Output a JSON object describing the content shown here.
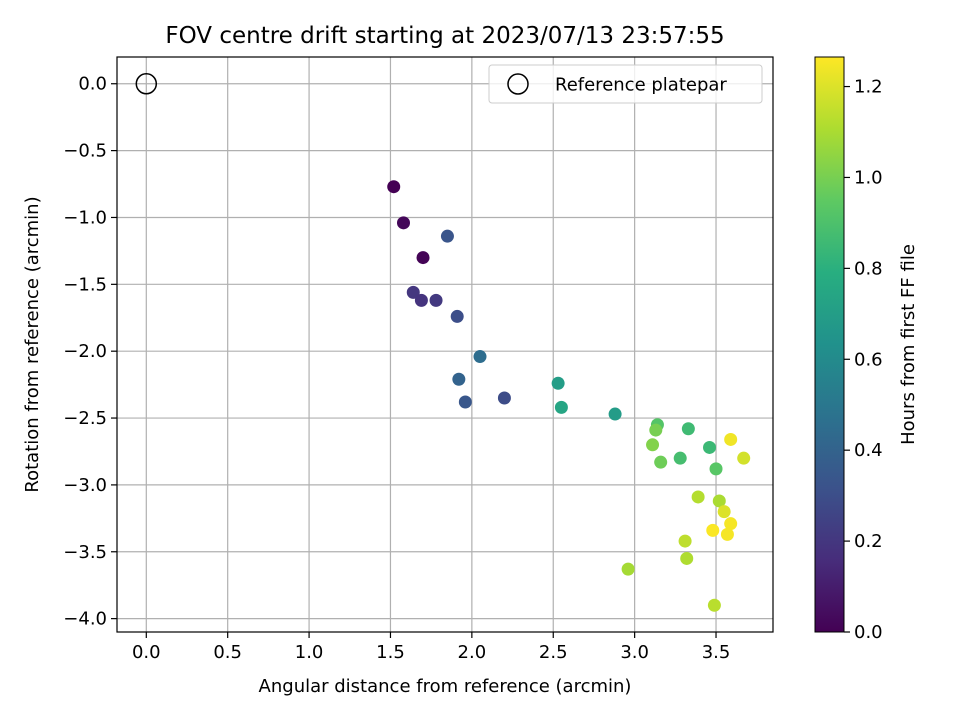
{
  "chart_data": {
    "type": "scatter",
    "title": "FOV centre drift starting at 2023/07/13 23:57:55",
    "xlabel": "Angular distance from reference (arcmin)",
    "ylabel": "Rotation from reference (arcmin)",
    "xlim": [
      -0.18,
      3.85
    ],
    "ylim": [
      -4.1,
      0.2
    ],
    "xticks": [
      0.0,
      0.5,
      1.0,
      1.5,
      2.0,
      2.5,
      3.0,
      3.5
    ],
    "xtick_labels": [
      "0.0",
      "0.5",
      "1.0",
      "1.5",
      "2.0",
      "2.5",
      "3.0",
      "3.5"
    ],
    "yticks": [
      0.0,
      -0.5,
      -1.0,
      -1.5,
      -2.0,
      -2.5,
      -3.0,
      -3.5,
      -4.0
    ],
    "ytick_labels": [
      "0.0",
      "−0.5",
      "−1.0",
      "−1.5",
      "−2.0",
      "−2.5",
      "−3.0",
      "−3.5",
      "−4.0"
    ],
    "grid": true,
    "legend": {
      "position": "top-right",
      "entries": [
        "Reference platepar"
      ]
    },
    "reference_point": {
      "x": 0.0,
      "y": 0.0,
      "marker": "open-circle"
    },
    "colorbar": {
      "label": "Hours from first FF file",
      "colormap": "viridis",
      "range": [
        0.0,
        1.265
      ],
      "ticks": [
        0.0,
        0.2,
        0.4,
        0.6,
        0.8,
        1.0,
        1.2
      ],
      "tick_labels": [
        "0.0",
        "0.2",
        "0.4",
        "0.6",
        "0.8",
        "1.0",
        "1.2"
      ]
    },
    "points": [
      {
        "x": 1.52,
        "y": -0.77,
        "c": 0.0
      },
      {
        "x": 1.58,
        "y": -1.04,
        "c": 0.02
      },
      {
        "x": 1.7,
        "y": -1.3,
        "c": 0.01
      },
      {
        "x": 1.64,
        "y": -1.56,
        "c": 0.2
      },
      {
        "x": 1.69,
        "y": -1.62,
        "c": 0.19
      },
      {
        "x": 1.78,
        "y": -1.62,
        "c": 0.21
      },
      {
        "x": 1.85,
        "y": -1.14,
        "c": 0.33
      },
      {
        "x": 1.91,
        "y": -1.74,
        "c": 0.3
      },
      {
        "x": 1.92,
        "y": -2.21,
        "c": 0.4
      },
      {
        "x": 1.96,
        "y": -2.38,
        "c": 0.34
      },
      {
        "x": 2.05,
        "y": -2.04,
        "c": 0.45
      },
      {
        "x": 2.2,
        "y": -2.35,
        "c": 0.29
      },
      {
        "x": 2.53,
        "y": -2.24,
        "c": 0.7
      },
      {
        "x": 2.55,
        "y": -2.42,
        "c": 0.74
      },
      {
        "x": 2.88,
        "y": -2.47,
        "c": 0.69
      },
      {
        "x": 3.14,
        "y": -2.55,
        "c": 0.92
      },
      {
        "x": 3.13,
        "y": -2.59,
        "c": 1.0
      },
      {
        "x": 3.11,
        "y": -2.7,
        "c": 1.02
      },
      {
        "x": 3.16,
        "y": -2.83,
        "c": 0.98
      },
      {
        "x": 3.33,
        "y": -2.58,
        "c": 0.86
      },
      {
        "x": 3.28,
        "y": -2.8,
        "c": 0.88
      },
      {
        "x": 3.46,
        "y": -2.72,
        "c": 0.85
      },
      {
        "x": 3.5,
        "y": -2.88,
        "c": 0.93
      },
      {
        "x": 3.59,
        "y": -2.66,
        "c": 1.24
      },
      {
        "x": 3.67,
        "y": -2.8,
        "c": 1.18
      },
      {
        "x": 3.39,
        "y": -3.09,
        "c": 1.12
      },
      {
        "x": 3.52,
        "y": -3.12,
        "c": 1.1
      },
      {
        "x": 3.55,
        "y": -3.2,
        "c": 1.2
      },
      {
        "x": 3.59,
        "y": -3.29,
        "c": 1.25
      },
      {
        "x": 3.48,
        "y": -3.34,
        "c": 1.26
      },
      {
        "x": 3.57,
        "y": -3.37,
        "c": 1.25
      },
      {
        "x": 3.31,
        "y": -3.42,
        "c": 1.14
      },
      {
        "x": 3.32,
        "y": -3.55,
        "c": 1.11
      },
      {
        "x": 2.96,
        "y": -3.63,
        "c": 1.09
      },
      {
        "x": 3.49,
        "y": -3.9,
        "c": 1.13
      }
    ]
  }
}
